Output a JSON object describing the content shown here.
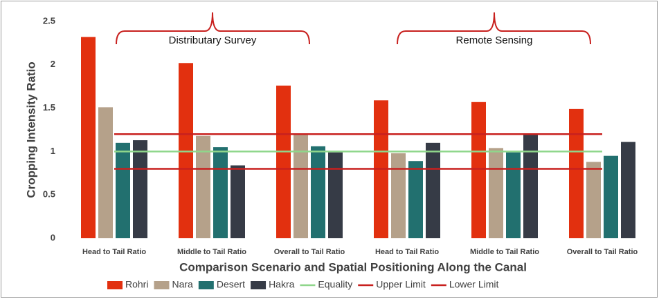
{
  "chart_data": {
    "type": "bar",
    "y_label": "Cropping Intensity Ratio",
    "x_label": "Comparison Scenario and Spatial Positioning Along the Canal",
    "categories": [
      "Head to Tail Ratio",
      "Middle to Tail Ratio",
      "Overall to Tail Ratio",
      "Head to Tail Ratio",
      "Middle to Tail Ratio",
      "Overall to Tail Ratio"
    ],
    "series": [
      {
        "name": "Rohri",
        "color": "#e2300f",
        "values": [
          2.32,
          2.02,
          1.76,
          1.59,
          1.57,
          1.49
        ]
      },
      {
        "name": "Nara",
        "color": "#b5a18a",
        "values": [
          1.51,
          1.18,
          1.19,
          0.98,
          1.04,
          0.88
        ]
      },
      {
        "name": "Desert",
        "color": "#22706f",
        "values": [
          1.1,
          1.05,
          1.06,
          0.89,
          0.99,
          0.95
        ]
      },
      {
        "name": "Hakra",
        "color": "#363b46",
        "values": [
          1.13,
          0.84,
          0.99,
          1.1,
          1.19,
          1.11
        ]
      }
    ],
    "reference_lines": [
      {
        "name": "Equality",
        "color": "#8fd68b",
        "value": 1
      },
      {
        "name": "Upper Limit",
        "color": "#c8201e",
        "value": 1.2
      },
      {
        "name": "Lower Limit",
        "color": "#c8201e",
        "value": 0.8
      }
    ],
    "annotations": [
      "Distributary Survey",
      "Remote Sensing"
    ],
    "ylim": [
      0,
      2.5
    ],
    "yticks": [
      0,
      0.5,
      1,
      1.5,
      2,
      2.5
    ],
    "grid": false
  }
}
